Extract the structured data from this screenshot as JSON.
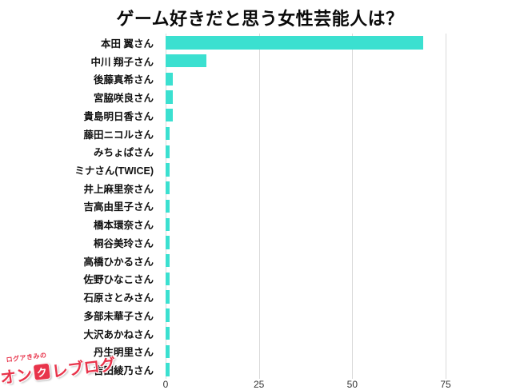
{
  "chart_data": {
    "type": "bar",
    "orientation": "horizontal",
    "title": "ゲーム好きだと思う女性芸能人は？",
    "categories": [
      "本田 翼さん",
      "中川 翔子さん",
      "後藤真希さん",
      "宮脇咲良さん",
      "貴島明日香さん",
      "藤田ニコルさん",
      "みちょぱさん",
      "ミナさん(TWICE)",
      "井上麻里奈さん",
      "吉高由里子さん",
      "橋本環奈さん",
      "桐谷美玲さん",
      "高橋ひかるさん",
      "佐野ひなこさん",
      "石原さとみさん",
      "多部未華子さん",
      "大沢あかねさん",
      "丹生明里さん",
      "吉田綾乃さん"
    ],
    "values": [
      69,
      11,
      2,
      2,
      2,
      1,
      1,
      1,
      1,
      1,
      1,
      1,
      1,
      1,
      1,
      1,
      1,
      1,
      1
    ],
    "xlabel": "",
    "ylabel": "",
    "xlim": [
      0,
      75
    ],
    "x_ticks": [
      0,
      25,
      50,
      75
    ],
    "bar_color": "#3be0d0",
    "gridline_color": "#d9d9d9",
    "grid": true,
    "legend": false
  },
  "logo": {
    "tagline": "ログアきみの",
    "text_before_icon": "オン",
    "icon": "claw-machine-icon",
    "icon_char": "ク",
    "text_after_icon": "レブログ",
    "color": "#e8344b"
  }
}
